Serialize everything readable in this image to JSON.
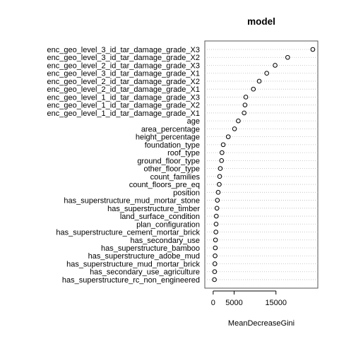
{
  "chart_data": {
    "type": "scatter",
    "title": "model",
    "xlabel": "MeanDecreaseGini",
    "ylabel": "",
    "xlim": [
      -2000,
      25000
    ],
    "xticks": [
      0,
      5000,
      15000
    ],
    "tick_labels": [
      "0",
      "5000",
      "15000"
    ],
    "grid": "dotted horizontal",
    "categories": [
      "enc_geo_level_3_id_tar_damage_grade_X3",
      "enc_geo_level_3_id_tar_damage_grade_X2",
      "enc_geo_level_2_id_tar_damage_grade_X3",
      "enc_geo_level_3_id_tar_damage_grade_X1",
      "enc_geo_level_2_id_tar_damage_grade_X2",
      "enc_geo_level_2_id_tar_damage_grade_X1",
      "enc_geo_level_1_id_tar_damage_grade_X3",
      "enc_geo_level_1_id_tar_damage_grade_X2",
      "enc_geo_level_1_id_tar_damage_grade_X1",
      "age",
      "area_percentage",
      "height_percentage",
      "foundation_type",
      "roof_type",
      "ground_floor_type",
      "other_floor_type",
      "count_families",
      "count_floors_pre_eq",
      "position",
      "has_superstructure_mud_mortar_stone",
      "has_superstructure_timber",
      "land_surface_condition",
      "plan_configuration",
      "has_superstructure_cement_mortar_brick",
      "has_secondary_use",
      "has_superstructure_bamboo",
      "has_superstructure_adobe_mud",
      "has_superstructure_mud_mortar_brick",
      "has_secondary_use_agriculture",
      "has_superstructure_rc_non_engineered"
    ],
    "values": [
      23800,
      17800,
      14800,
      12800,
      11000,
      9600,
      7800,
      7600,
      7400,
      6000,
      5100,
      3600,
      2400,
      2100,
      2000,
      1700,
      1550,
      1450,
      1200,
      1000,
      900,
      750,
      700,
      650,
      550,
      500,
      450,
      400,
      350,
      300
    ]
  }
}
